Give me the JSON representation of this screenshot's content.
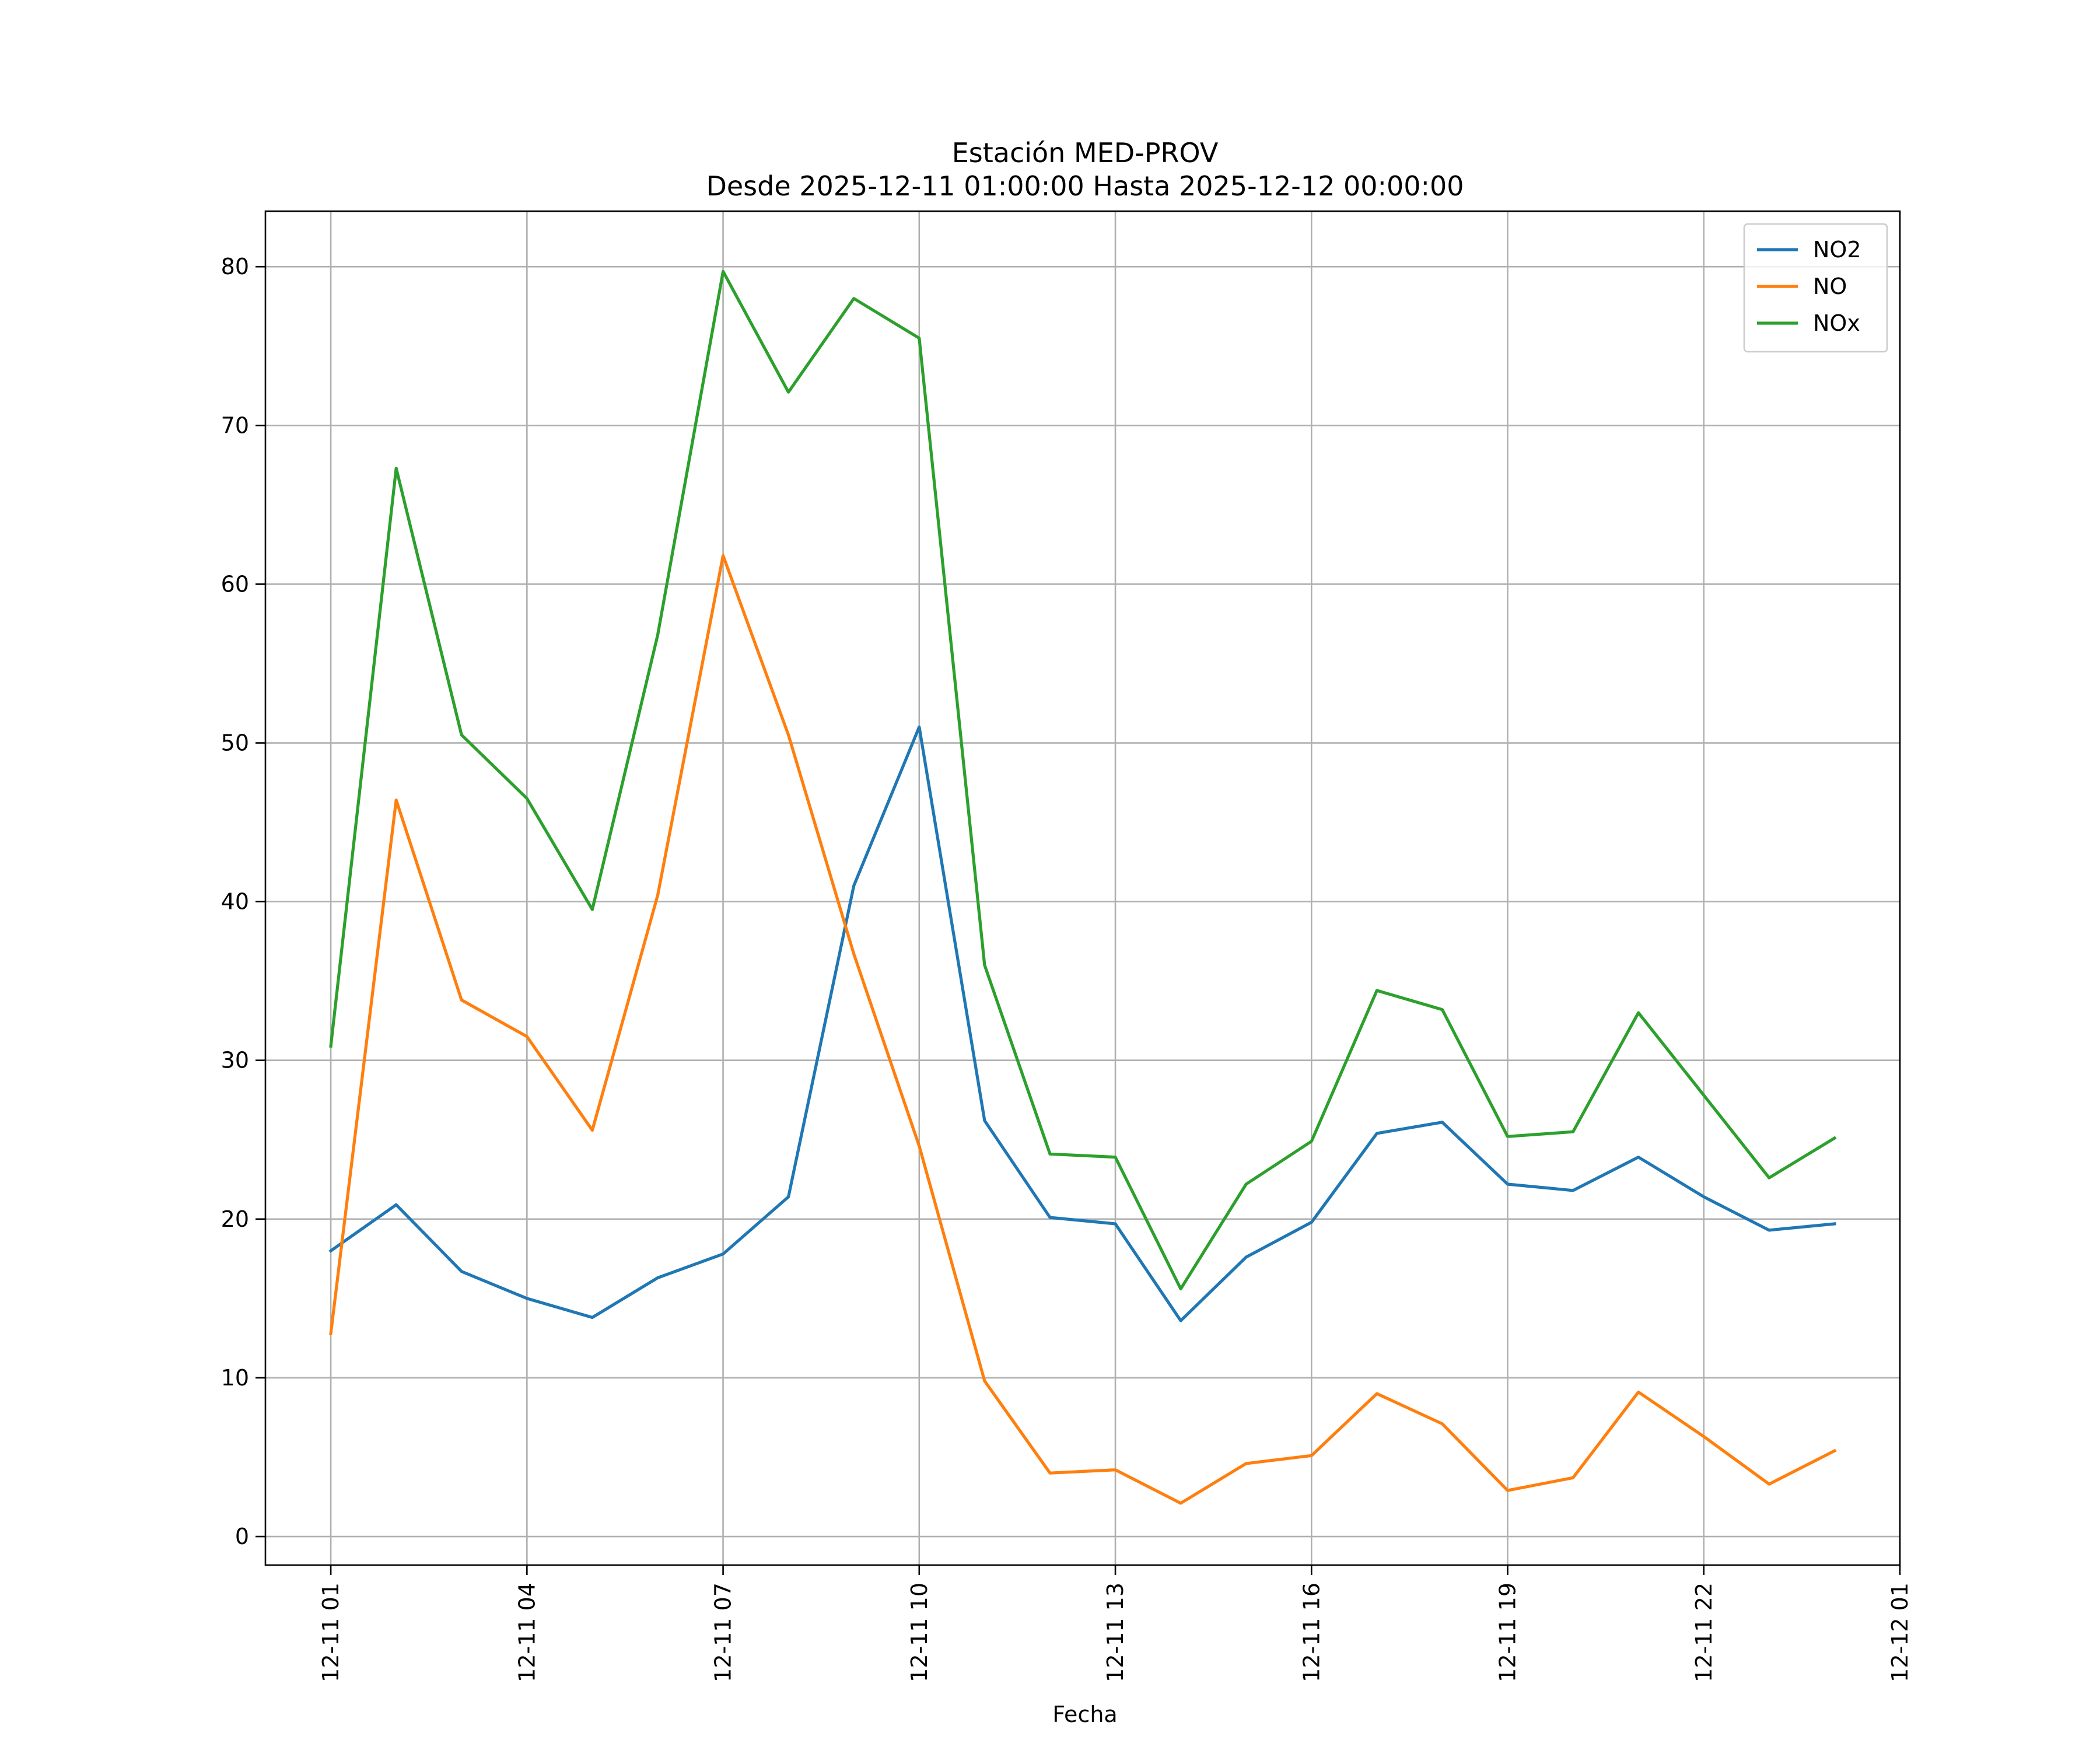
{
  "chart_data": {
    "type": "line",
    "title_line1": "Estación MED-PROV",
    "title_line2": "Desde 2025-12-11 01:00:00 Hasta 2025-12-12 00:00:00",
    "xlabel": "Fecha",
    "ylabel": "",
    "x_start": "2025-12-11 01:00",
    "x": [
      "12-11 01",
      "12-11 02",
      "12-11 03",
      "12-11 04",
      "12-11 05",
      "12-11 06",
      "12-11 07",
      "12-11 08",
      "12-11 09",
      "12-11 10",
      "12-11 11",
      "12-11 12",
      "12-11 13",
      "12-11 14",
      "12-11 15",
      "12-11 16",
      "12-11 17",
      "12-11 18",
      "12-11 19",
      "12-11 20",
      "12-11 21",
      "12-11 22",
      "12-11 23",
      "12-12 00"
    ],
    "xlim": [
      "12-11 00",
      "12-12 01"
    ],
    "x_ticks": [
      "12-11 01",
      "12-11 04",
      "12-11 07",
      "12-11 10",
      "12-11 13",
      "12-11 16",
      "12-11 19",
      "12-11 22",
      "12-12 01"
    ],
    "ylim": [
      -1.8,
      83.5
    ],
    "y_ticks": [
      0,
      10,
      20,
      30,
      40,
      50,
      60,
      70,
      80
    ],
    "grid": true,
    "legend_position": "top-right",
    "series": [
      {
        "name": "NO2",
        "color": "#1f77b4",
        "values": [
          18.0,
          20.9,
          16.7,
          15.0,
          13.8,
          16.3,
          17.8,
          21.4,
          41.0,
          51.0,
          26.2,
          20.1,
          19.7,
          13.6,
          17.6,
          19.8,
          25.4,
          26.1,
          22.2,
          21.8,
          23.9,
          21.4,
          19.3,
          19.7
        ]
      },
      {
        "name": "NO",
        "color": "#ff7f0e",
        "values": [
          12.8,
          46.4,
          33.8,
          31.5,
          25.6,
          40.4,
          61.8,
          50.5,
          36.7,
          24.6,
          9.8,
          4.0,
          4.2,
          2.1,
          4.6,
          5.1,
          9.0,
          7.1,
          2.9,
          3.7,
          9.1,
          6.3,
          3.3,
          5.4
        ]
      },
      {
        "name": "NOx",
        "color": "#2ca02c",
        "values": [
          30.9,
          67.3,
          50.5,
          46.5,
          39.5,
          56.8,
          79.7,
          72.1,
          78.0,
          75.5,
          36.0,
          24.1,
          23.9,
          15.6,
          22.2,
          24.9,
          34.4,
          33.2,
          25.2,
          25.5,
          33.0,
          27.8,
          22.6,
          25.1
        ]
      }
    ]
  }
}
